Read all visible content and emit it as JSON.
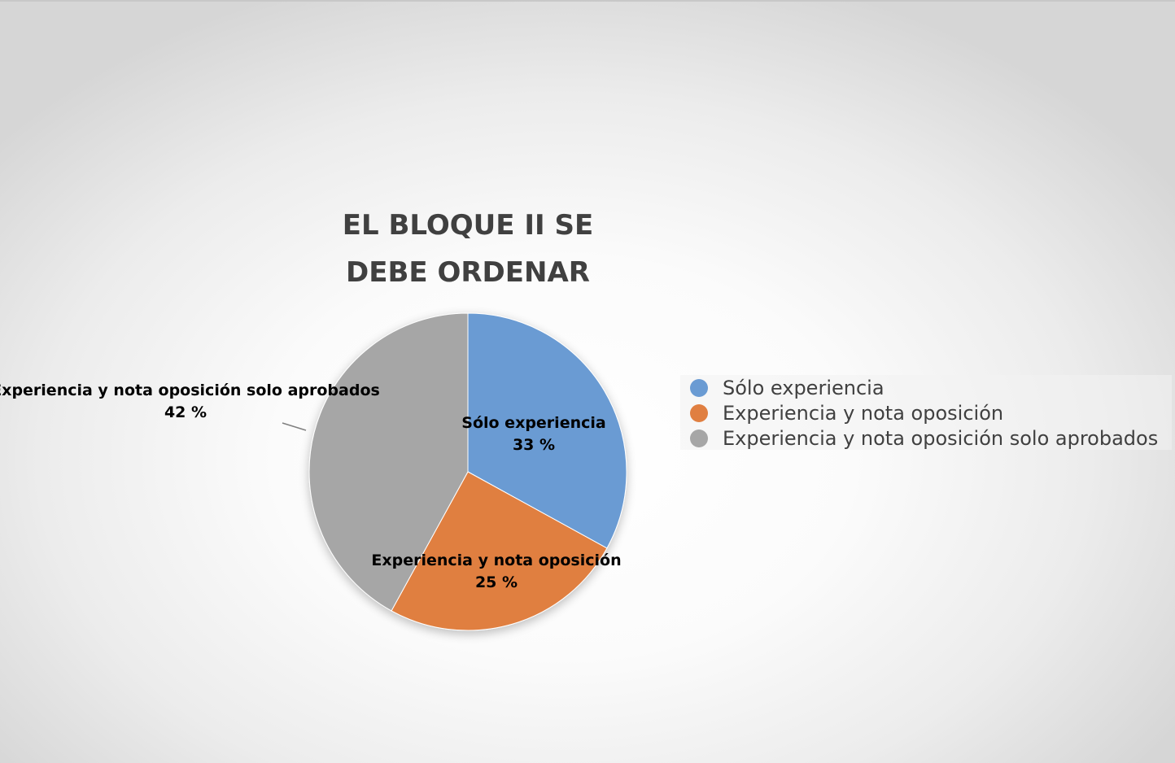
{
  "chart_data": {
    "type": "pie",
    "title_lines": [
      "EL BLOQUE II SE",
      "DEBE ORDENAR"
    ],
    "categories": [
      "Sólo experiencia",
      "Experiencia y nota oposición",
      "Experiencia y nota oposición solo aprobados"
    ],
    "values": [
      33,
      25,
      42
    ],
    "value_labels": [
      "33 %",
      "25 %",
      "42 %"
    ],
    "unit": "%",
    "colors": [
      "#6A9BD3",
      "#E07F41",
      "#A6A6A6"
    ],
    "legend_position": "right"
  }
}
